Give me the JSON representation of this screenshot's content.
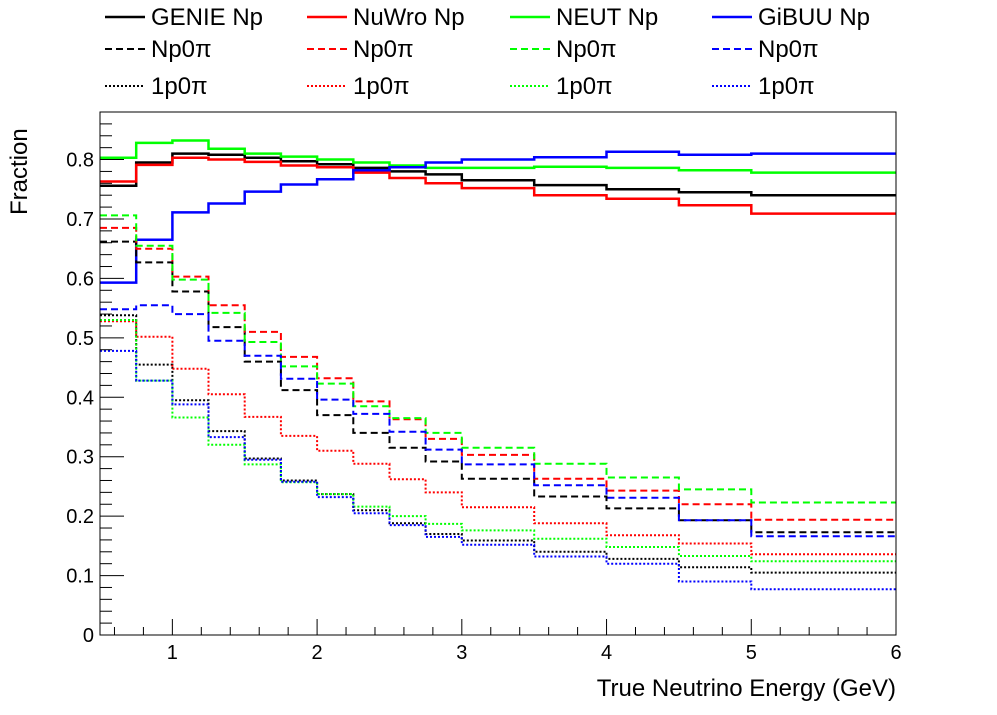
{
  "chart_data": {
    "type": "line",
    "style": "step-histogram",
    "title": "",
    "xlabel": "True Neutrino Energy (GeV)",
    "ylabel": "Fraction",
    "xlim": [
      0.5,
      6
    ],
    "ylim": [
      0,
      0.88
    ],
    "grid": false,
    "legend_position": "top",
    "x_ticks": [
      "1",
      "2",
      "3",
      "4",
      "5",
      "6"
    ],
    "y_ticks": [
      "0",
      "0.1",
      "0.2",
      "0.3",
      "0.4",
      "0.5",
      "0.6",
      "0.7",
      "0.8"
    ],
    "bin_edges": [
      0.5,
      0.75,
      1.0,
      1.25,
      1.5,
      1.75,
      2.0,
      2.25,
      2.5,
      2.75,
      3.0,
      3.5,
      4.0,
      4.5,
      5.0,
      6.0
    ],
    "series": [
      {
        "name": "GENIE Np",
        "color": "#000000",
        "dash": "solid",
        "values": [
          0.756,
          0.795,
          0.81,
          0.808,
          0.803,
          0.797,
          0.792,
          0.786,
          0.78,
          0.775,
          0.765,
          0.757,
          0.75,
          0.745,
          0.74
        ]
      },
      {
        "name": "NuWro Np",
        "color": "#ff0000",
        "dash": "solid",
        "values": [
          0.763,
          0.791,
          0.803,
          0.8,
          0.796,
          0.79,
          0.787,
          0.778,
          0.769,
          0.76,
          0.752,
          0.74,
          0.734,
          0.723,
          0.709
        ]
      },
      {
        "name": "NEUT Np",
        "color": "#00ff00",
        "dash": "solid",
        "values": [
          0.803,
          0.828,
          0.832,
          0.818,
          0.81,
          0.805,
          0.8,
          0.795,
          0.79,
          0.786,
          0.786,
          0.788,
          0.786,
          0.782,
          0.778
        ]
      },
      {
        "name": "GiBUU Np",
        "color": "#0000ff",
        "dash": "solid",
        "values": [
          0.593,
          0.665,
          0.711,
          0.726,
          0.746,
          0.758,
          0.767,
          0.782,
          0.787,
          0.795,
          0.8,
          0.804,
          0.813,
          0.808,
          0.81
        ]
      },
      {
        "name": "Np0π",
        "model": "GENIE",
        "color": "#000000",
        "dash": "dashed",
        "values": [
          0.662,
          0.627,
          0.578,
          0.518,
          0.46,
          0.412,
          0.37,
          0.34,
          0.315,
          0.292,
          0.263,
          0.233,
          0.213,
          0.193,
          0.173
        ]
      },
      {
        "name": "Np0π",
        "model": "NuWro",
        "color": "#ff0000",
        "dash": "dashed",
        "values": [
          0.685,
          0.65,
          0.603,
          0.555,
          0.51,
          0.468,
          0.432,
          0.393,
          0.363,
          0.33,
          0.303,
          0.263,
          0.243,
          0.22,
          0.194
        ]
      },
      {
        "name": "Np0π",
        "model": "NEUT",
        "color": "#00ff00",
        "dash": "dashed",
        "values": [
          0.706,
          0.655,
          0.598,
          0.542,
          0.493,
          0.452,
          0.423,
          0.385,
          0.365,
          0.34,
          0.315,
          0.288,
          0.265,
          0.245,
          0.223
        ]
      },
      {
        "name": "Np0π",
        "model": "GiBUU",
        "color": "#0000ff",
        "dash": "dashed",
        "values": [
          0.548,
          0.555,
          0.54,
          0.495,
          0.47,
          0.431,
          0.396,
          0.372,
          0.342,
          0.312,
          0.287,
          0.252,
          0.231,
          0.193,
          0.166
        ]
      },
      {
        "name": "1p0π",
        "model": "GENIE",
        "color": "#000000",
        "dash": "dotted",
        "values": [
          0.538,
          0.455,
          0.395,
          0.343,
          0.297,
          0.26,
          0.237,
          0.21,
          0.188,
          0.17,
          0.159,
          0.14,
          0.128,
          0.114,
          0.105
        ]
      },
      {
        "name": "1p0π",
        "model": "NuWro",
        "color": "#ff0000",
        "dash": "dotted",
        "values": [
          0.528,
          0.502,
          0.448,
          0.405,
          0.367,
          0.335,
          0.31,
          0.288,
          0.262,
          0.24,
          0.215,
          0.188,
          0.168,
          0.154,
          0.136
        ]
      },
      {
        "name": "1p0π",
        "model": "NEUT",
        "color": "#00ff00",
        "dash": "dotted",
        "values": [
          0.53,
          0.428,
          0.366,
          0.32,
          0.287,
          0.257,
          0.237,
          0.216,
          0.2,
          0.187,
          0.176,
          0.162,
          0.148,
          0.133,
          0.124
        ]
      },
      {
        "name": "1p0π",
        "model": "GiBUU",
        "color": "#0000ff",
        "dash": "dotted",
        "values": [
          0.478,
          0.428,
          0.388,
          0.333,
          0.295,
          0.258,
          0.232,
          0.205,
          0.185,
          0.165,
          0.152,
          0.132,
          0.12,
          0.09,
          0.077
        ]
      }
    ]
  }
}
